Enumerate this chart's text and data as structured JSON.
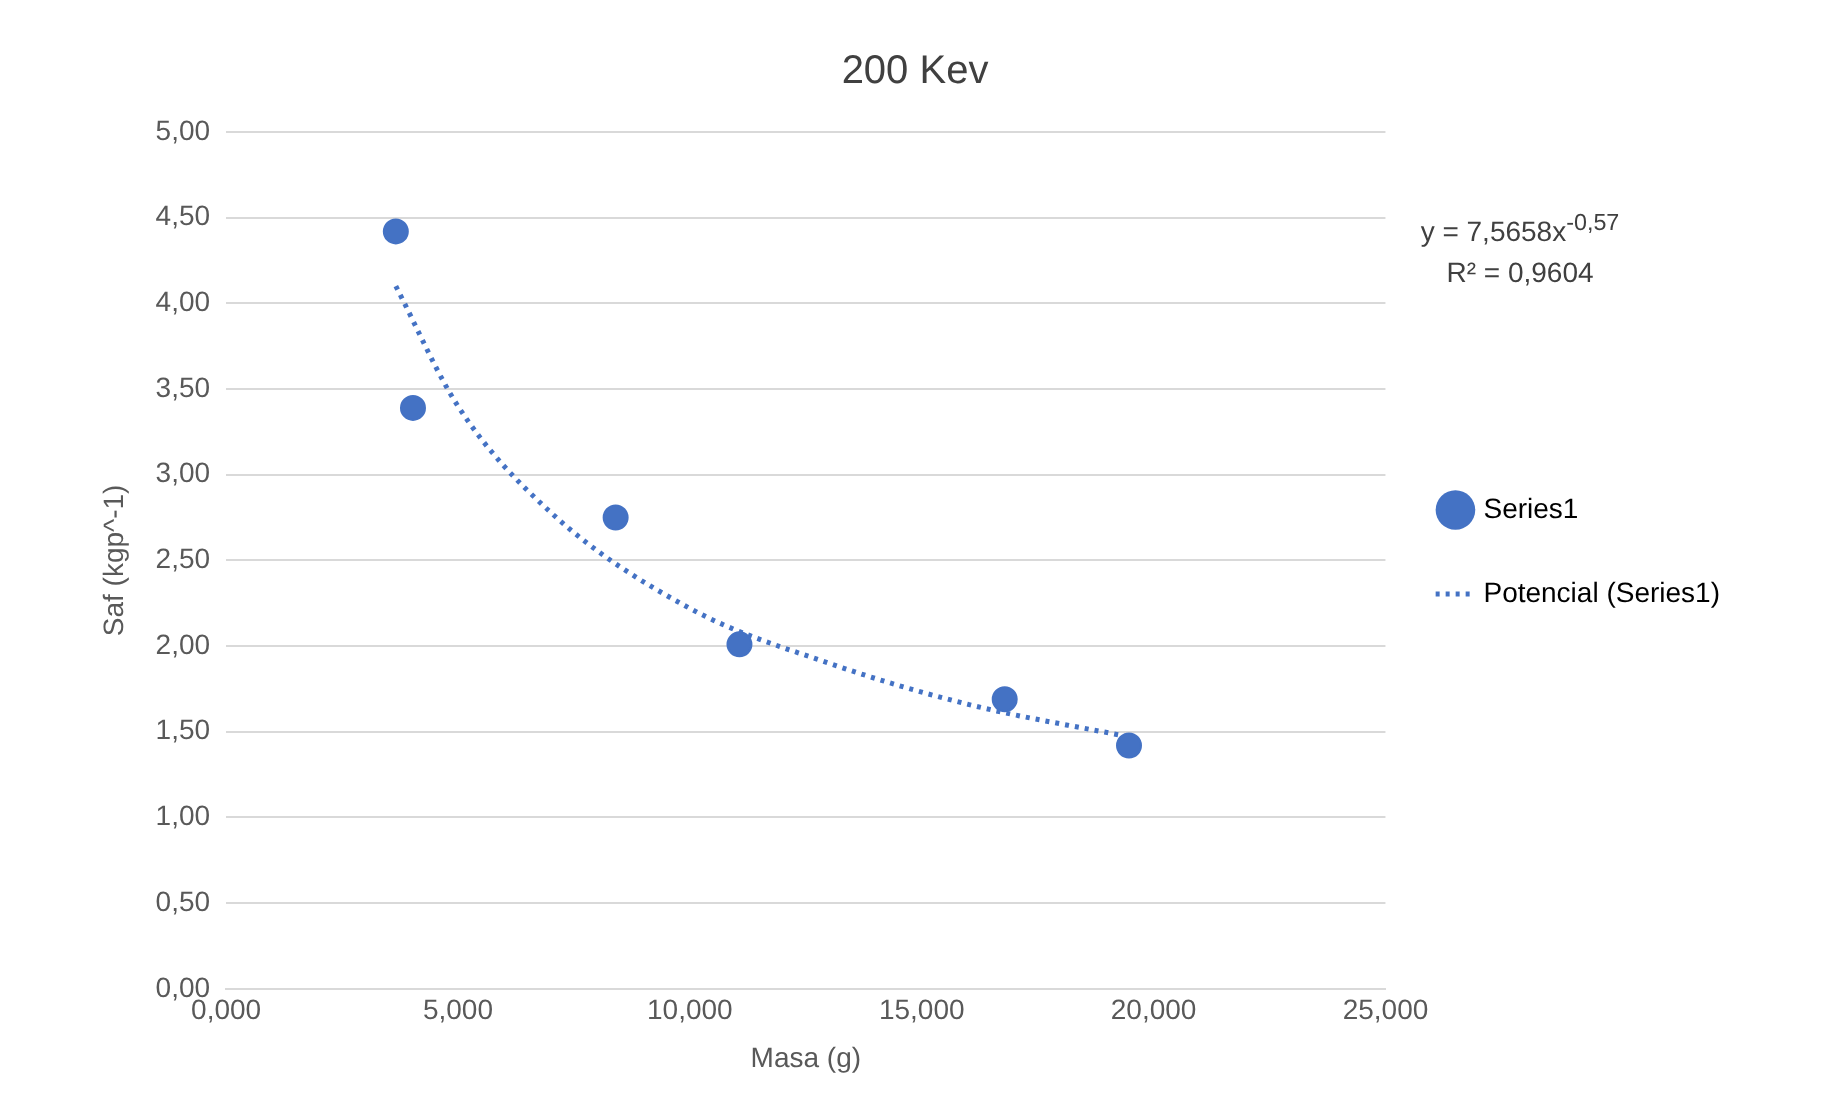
{
  "chart_data": {
    "type": "scatter",
    "title": "200 Kev",
    "xlabel": "Masa (g)",
    "ylabel": "Saf (kgp^-1)",
    "xlim": [
      0,
      25
    ],
    "xticks": [
      {
        "value": 0,
        "label": "0,000"
      },
      {
        "value": 5,
        "label": "5,000"
      },
      {
        "value": 10,
        "label": "10,000"
      },
      {
        "value": 15,
        "label": "15,000"
      },
      {
        "value": 20,
        "label": "20,000"
      },
      {
        "value": 25,
        "label": "25,000"
      }
    ],
    "ylim": [
      0,
      5
    ],
    "yticks": [
      {
        "value": 0,
        "label": "0,00"
      },
      {
        "value": 0.5,
        "label": "0,50"
      },
      {
        "value": 1,
        "label": "1,00"
      },
      {
        "value": 1.5,
        "label": "1,50"
      },
      {
        "value": 2,
        "label": "2,00"
      },
      {
        "value": 2.5,
        "label": "2,50"
      },
      {
        "value": 3,
        "label": "3,00"
      },
      {
        "value": 3.5,
        "label": "3,50"
      },
      {
        "value": 4,
        "label": "4,00"
      },
      {
        "value": 4.5,
        "label": "4,50"
      },
      {
        "value": 5,
        "label": "5,00"
      }
    ],
    "grid": "y",
    "legend": "right",
    "series": [
      {
        "name": "Series1",
        "color": "#4472c4",
        "marker": "circle",
        "x": [
          3.66,
          4.03,
          8.4,
          11.07,
          16.79,
          19.47
        ],
        "values": [
          4.42,
          3.39,
          2.75,
          2.01,
          1.69,
          1.42
        ]
      },
      {
        "name": "Potencial (Series1)",
        "type": "line",
        "color": "#4472c4",
        "marker": "none",
        "line_style": "dotted",
        "x": [
          3.66,
          5,
          7,
          10,
          13,
          16,
          19.47
        ],
        "values": [
          4.1,
          3.4,
          2.78,
          2.22,
          1.9,
          1.66,
          1.47
        ]
      }
    ],
    "annotations": [
      "y = 7,5658x$^{-0,57}$",
      "R² = 0,9604"
    ]
  }
}
